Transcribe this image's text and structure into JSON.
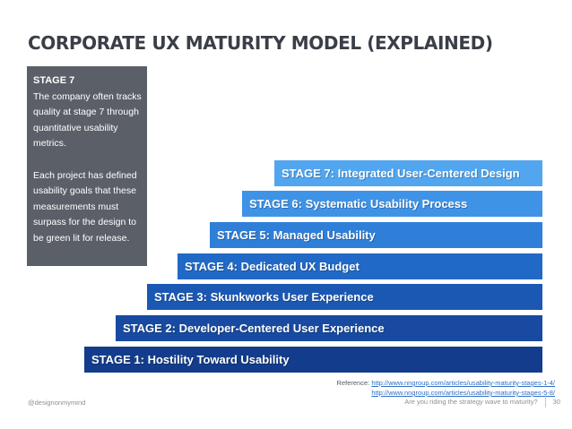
{
  "slide": {
    "title": "CORPORATE UX MATURITY MODEL (EXPLAINED)"
  },
  "callout": {
    "heading": "STAGE 7",
    "paragraph1": "The company often tracks quality at stage 7 through quantitative usability metrics.",
    "paragraph2": "Each project has defined usability goals that these measurements must surpass for the design to be green lit for release."
  },
  "stages": [
    {
      "label": "STAGE 7: Integrated User-Centered Design",
      "color": "#52a6ef"
    },
    {
      "label": "STAGE 6: Systematic Usability Process",
      "color": "#3f93e7"
    },
    {
      "label": "STAGE 5: Managed Usability",
      "color": "#2f7fd8"
    },
    {
      "label": "STAGE 4: Dedicated UX Budget",
      "color": "#2169c6"
    },
    {
      "label": "STAGE 3: Skunkworks User Experience",
      "color": "#1b58b3"
    },
    {
      "label": "STAGE 2: Developer-Centered User Experience",
      "color": "#174aa0"
    },
    {
      "label": "STAGE 1: Hostility Toward Usability",
      "color": "#133d8c"
    }
  ],
  "reference": {
    "prefix": "Reference:",
    "url1": "http://www.nngroup.com/articles/usability-maturity-stages-1-4/",
    "url2": "http://www.nngroup.com/articles/usability-maturity-stages-5-8/"
  },
  "footer": {
    "handle": "@designonmymind",
    "tagline": "Are you riding the strategy wave to maturity?",
    "page_number": "30"
  }
}
